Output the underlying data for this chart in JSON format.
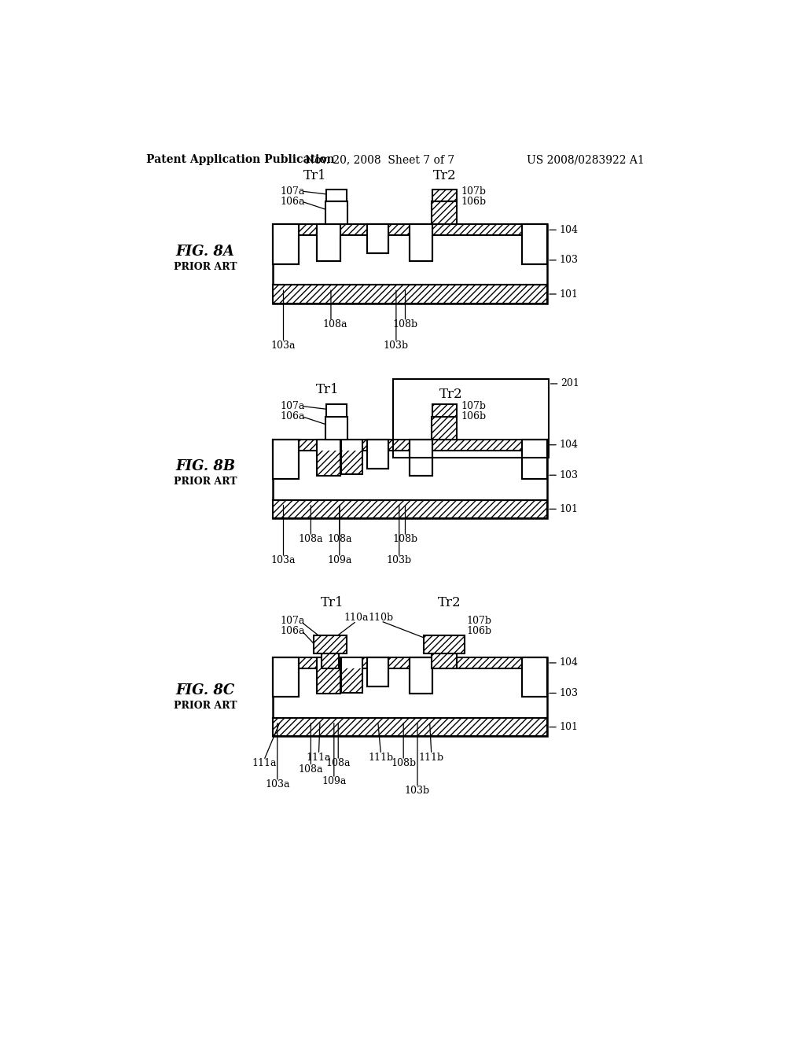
{
  "header_left": "Patent Application Publication",
  "header_mid": "Nov. 20, 2008  Sheet 7 of 7",
  "header_right": "US 2008/0283922 A1",
  "bg_color": "#ffffff",
  "prior_art": "PRIOR ART"
}
